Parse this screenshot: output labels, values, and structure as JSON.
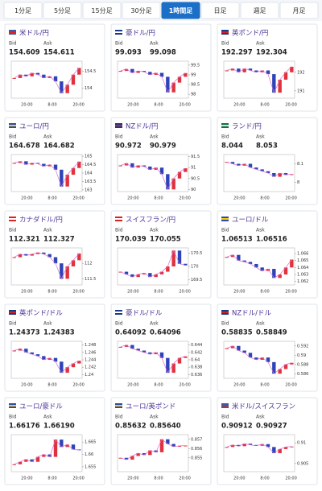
{
  "tabs": [
    "1分足",
    "5分足",
    "15分足",
    "30分足",
    "1時間足",
    "日足",
    "週足",
    "月足"
  ],
  "active_tab": 4,
  "labels": {
    "bid": "Bid",
    "ask": "Ask"
  },
  "time_labels": [
    "20:00",
    "8:00",
    "20:00"
  ],
  "cards": [
    {
      "name": "米ドル/円",
      "bid": 154.609,
      "ask": 154.611,
      "chart_data": {
        "type": "candle",
        "ylim": [
          153.7,
          154.8
        ],
        "yticks": [
          154,
          154.5
        ],
        "values": [
          154.3,
          154.4,
          154.35,
          154.45,
          154.4,
          154.3,
          154.35,
          154.2,
          153.85,
          154.1,
          154.4,
          154.6
        ]
      }
    },
    {
      "name": "豪ドル/円",
      "bid": 99.093,
      "ask": 99.098,
      "chart_data": {
        "type": "candle",
        "ylim": [
          97.8,
          99.7
        ],
        "yticks": [
          98,
          98.5,
          99,
          99.5
        ],
        "values": [
          99.2,
          99.3,
          99.1,
          99.2,
          99.15,
          99.0,
          99.1,
          98.9,
          98.1,
          98.6,
          98.9,
          99.09
        ]
      }
    },
    {
      "name": "英ポンド/円",
      "bid": 192.297,
      "ask": 192.304,
      "chart_data": {
        "type": "candle",
        "ylim": [
          190.6,
          192.6
        ],
        "yticks": [
          191,
          192
        ],
        "values": [
          192.1,
          192.2,
          192.0,
          192.2,
          192.1,
          192.0,
          192.1,
          191.9,
          190.9,
          191.6,
          192.0,
          192.3
        ]
      }
    },
    {
      "name": "ユーロ/円",
      "bid": 164.678,
      "ask": 164.682,
      "chart_data": {
        "type": "candle",
        "ylim": [
          162.9,
          165.1
        ],
        "yticks": [
          163,
          163.5,
          164,
          164.5,
          165
        ],
        "values": [
          164.6,
          164.7,
          164.5,
          164.6,
          164.55,
          164.4,
          164.5,
          164.2,
          163.2,
          163.9,
          164.3,
          164.68
        ]
      }
    },
    {
      "name": "NZドル/円",
      "bid": 90.972,
      "ask": 90.979,
      "chart_data": {
        "type": "candle",
        "ylim": [
          89.9,
          91.6
        ],
        "yticks": [
          90,
          90.5,
          91,
          91.5
        ],
        "values": [
          91.1,
          91.2,
          91.0,
          91.1,
          91.05,
          90.9,
          91.0,
          90.7,
          90.0,
          90.5,
          90.8,
          90.97
        ]
      }
    },
    {
      "name": "ランド/円",
      "bid": 8.044,
      "ask": 8.053,
      "chart_data": {
        "type": "candle",
        "ylim": [
          7.95,
          8.15
        ],
        "yticks": [
          8,
          8.1
        ],
        "values": [
          8.11,
          8.1,
          8.09,
          8.1,
          8.08,
          8.07,
          8.06,
          8.05,
          8.03,
          8.05,
          8.04,
          8.044
        ]
      }
    },
    {
      "name": "カナダドル/円",
      "bid": 112.321,
      "ask": 112.327,
      "chart_data": {
        "type": "candle",
        "ylim": [
          111.3,
          112.5
        ],
        "yticks": [
          111.5,
          112
        ],
        "values": [
          112.2,
          112.3,
          112.25,
          112.3,
          112.35,
          112.3,
          112.2,
          112.0,
          111.5,
          111.9,
          112.1,
          112.32
        ]
      }
    },
    {
      "name": "スイスフラン/円",
      "bid": 170.039,
      "ask": 170.055,
      "chart_data": {
        "type": "candle",
        "ylim": [
          169.3,
          170.7
        ],
        "yticks": [
          169.5,
          170,
          170.5
        ],
        "values": [
          169.8,
          169.7,
          169.6,
          169.7,
          169.75,
          169.6,
          169.7,
          169.8,
          170.0,
          170.6,
          170.1,
          170.04
        ]
      }
    },
    {
      "name": "ユーロ/ドル",
      "bid": 1.06513,
      "ask": 1.06516,
      "chart_data": {
        "type": "candle",
        "ylim": [
          1.0615,
          1.0668
        ],
        "yticks": [
          1.062,
          1.063,
          1.064,
          1.065,
          1.066
        ],
        "values": [
          1.0655,
          1.0658,
          1.065,
          1.0648,
          1.0645,
          1.064,
          1.0635,
          1.0638,
          1.0625,
          1.063,
          1.064,
          1.06513
        ]
      }
    },
    {
      "name": "英ポンド/ドル",
      "bid": 1.24373,
      "ask": 1.24383,
      "chart_data": {
        "type": "candle",
        "ylim": [
          1.239,
          1.249
        ],
        "yticks": [
          1.24,
          1.242,
          1.244,
          1.246,
          1.248
        ],
        "values": [
          1.2465,
          1.247,
          1.246,
          1.2455,
          1.245,
          1.244,
          1.2445,
          1.2435,
          1.2405,
          1.242,
          1.243,
          1.24373
        ]
      }
    },
    {
      "name": "豪ドル/ドル",
      "bid": 0.64092,
      "ask": 0.64096,
      "chart_data": {
        "type": "candle",
        "ylim": [
          0.635,
          0.645
        ],
        "yticks": [
          0.636,
          0.638,
          0.64,
          0.642,
          0.644
        ],
        "values": [
          0.6435,
          0.644,
          0.643,
          0.6425,
          0.642,
          0.6415,
          0.642,
          0.6405,
          0.6365,
          0.639,
          0.6405,
          0.64092
        ]
      }
    },
    {
      "name": "NZドル/ドル",
      "bid": 0.58835,
      "ask": 0.58849,
      "chart_data": {
        "type": "candle",
        "ylim": [
          0.585,
          0.593
        ],
        "yticks": [
          0.586,
          0.588,
          0.59,
          0.592
        ],
        "values": [
          0.5915,
          0.592,
          0.591,
          0.5905,
          0.5895,
          0.589,
          0.5895,
          0.5885,
          0.586,
          0.587,
          0.588,
          0.58835
        ]
      }
    },
    {
      "name": "ユーロ/豪ドル",
      "bid": 1.66176,
      "ask": {
        "value": 1.6619,
        "label": "1.66190"
      },
      "chart_data": {
        "type": "candle",
        "ylim": [
          1.653,
          1.668
        ],
        "yticks": [
          1.655,
          1.66,
          1.665
        ],
        "values": [
          1.656,
          1.657,
          1.658,
          1.657,
          1.659,
          1.66,
          1.659,
          1.666,
          1.663,
          1.664,
          1.662,
          1.66176
        ]
      }
    },
    {
      "name": "ユーロ/英ポンド",
      "bid": 0.85632,
      "ask": {
        "value": 0.8564,
        "label": "0.85640"
      },
      "chart_data": {
        "type": "candle",
        "ylim": [
          0.8535,
          0.8575
        ],
        "yticks": [
          0.855,
          0.856,
          0.857
        ],
        "values": [
          0.855,
          0.8548,
          0.8552,
          0.8555,
          0.8553,
          0.8558,
          0.8556,
          0.857,
          0.8565,
          0.8562,
          0.8563,
          0.85632
        ]
      }
    },
    {
      "name": "米ドル/スイスフラン",
      "bid": 0.90912,
      "ask": 0.90927,
      "chart_data": {
        "type": "candle",
        "ylim": [
          0.903,
          0.912
        ],
        "yticks": [
          0.905,
          0.91
        ],
        "values": [
          0.909,
          0.9095,
          0.9092,
          0.9098,
          0.9095,
          0.9093,
          0.9097,
          0.909,
          0.9075,
          0.9085,
          0.909,
          0.90912
        ]
      }
    }
  ]
}
